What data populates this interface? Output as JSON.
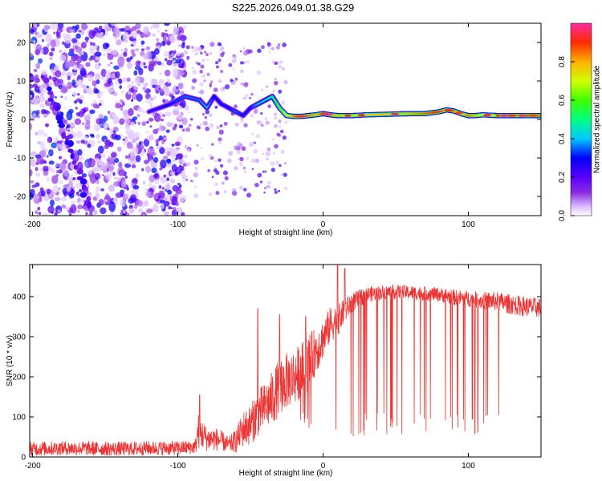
{
  "chart_data": [
    {
      "type": "heatmap",
      "title": "S225.2026.049.01.38.G29",
      "xlabel": "Height of straight line (km)",
      "ylabel": "Frequency (Hz)",
      "xlim": [
        -202,
        150
      ],
      "ylim": [
        -25,
        25
      ],
      "xticks": [
        -200,
        -100,
        0,
        100
      ],
      "xtick_labels": [
        "-200",
        "-100",
        "0",
        "100"
      ],
      "yticks": [
        -20,
        -10,
        0,
        10,
        20
      ],
      "ytick_labels": [
        "-20",
        "-10",
        "0",
        "10",
        "20"
      ],
      "colorbar": {
        "label": "Normalized spectral amplitude",
        "range": [
          0.0,
          1.0
        ],
        "ticks": [
          0.0,
          0.2,
          0.4,
          0.6,
          0.8
        ],
        "tick_labels": [
          "0.0",
          "0.2",
          "0.4",
          "0.6",
          "0.8"
        ]
      },
      "frequency_trace": {
        "x": [
          -120,
          -105,
          -95,
          -85,
          -80,
          -75,
          -70,
          -65,
          -60,
          -55,
          -50,
          -45,
          -40,
          -35,
          -30,
          -25,
          -20,
          -15,
          -10,
          -5,
          0,
          5,
          10,
          20,
          30,
          40,
          50,
          60,
          70,
          80,
          85,
          90,
          95,
          100,
          105,
          110,
          120,
          130,
          140,
          150
        ],
        "y": [
          2,
          4,
          6,
          5,
          3,
          6,
          4,
          3,
          2,
          1,
          3,
          4,
          5,
          6,
          3,
          1,
          0.8,
          0.8,
          1,
          1.2,
          1.5,
          1.2,
          1,
          1,
          1.2,
          1.3,
          1.4,
          1.5,
          1.5,
          2,
          2.5,
          2.2,
          1.5,
          1,
          1,
          1.2,
          1,
          1,
          1,
          1
        ],
        "amplitude": [
          0.25,
          0.3,
          0.35,
          0.35,
          0.4,
          0.3,
          0.3,
          0.3,
          0.35,
          0.3,
          0.3,
          0.4,
          0.45,
          0.5,
          0.6,
          0.7,
          0.85,
          0.9,
          0.85,
          0.8,
          0.85,
          0.8,
          0.8,
          0.75,
          0.75,
          0.8,
          0.75,
          0.8,
          0.85,
          0.9,
          0.8,
          0.85,
          0.75,
          0.85,
          0.8,
          0.7,
          0.75,
          0.8,
          0.9,
          0.85
        ]
      },
      "noise_band": {
        "x_range": [
          -202,
          -95
        ],
        "y_range": [
          -25,
          25
        ],
        "amplitude_range": [
          0.0,
          0.3
        ]
      },
      "diagonal_feature": {
        "x": [
          -190,
          -160
        ],
        "y": [
          10,
          -23
        ]
      }
    },
    {
      "type": "line",
      "title": "",
      "xlabel": "Height of straight line (km)",
      "ylabel": "SNR (10 * v/v)",
      "xlim": [
        -202,
        150
      ],
      "ylim": [
        0,
        480
      ],
      "xticks": [
        -200,
        -100,
        0,
        100
      ],
      "xtick_labels": [
        "-200",
        "-100",
        "0",
        "100"
      ],
      "yticks": [
        0,
        100,
        200,
        300,
        400
      ],
      "ytick_labels": [
        "0",
        "100",
        "200",
        "300",
        "400"
      ],
      "series": [
        {
          "name": "SNR",
          "color": "#ee3333",
          "x": [
            -202,
            -180,
            -160,
            -140,
            -120,
            -100,
            -88,
            -86,
            -80,
            -75,
            -70,
            -65,
            -60,
            -55,
            -50,
            -45,
            -40,
            -35,
            -30,
            -25,
            -20,
            -15,
            -10,
            -5,
            0,
            5,
            10,
            15,
            20,
            30,
            40,
            50,
            60,
            70,
            80,
            90,
            100,
            110,
            120,
            130,
            140,
            150
          ],
          "mean": [
            20,
            22,
            21,
            20,
            22,
            22,
            25,
            65,
            45,
            45,
            40,
            30,
            40,
            70,
            80,
            110,
            125,
            145,
            175,
            190,
            200,
            215,
            235,
            265,
            295,
            330,
            340,
            365,
            385,
            405,
            410,
            412,
            410,
            408,
            405,
            398,
            395,
            390,
            388,
            380,
            375,
            372
          ],
          "spread": [
            18,
            18,
            18,
            18,
            18,
            18,
            18,
            45,
            30,
            30,
            25,
            20,
            30,
            45,
            50,
            60,
            60,
            70,
            70,
            70,
            70,
            70,
            70,
            60,
            50,
            45,
            40,
            30,
            25,
            20,
            18,
            18,
            18,
            18,
            18,
            20,
            20,
            22,
            24,
            25,
            25,
            25
          ],
          "peaks": [
            [
              -85,
              155
            ],
            [
              -45,
              370
            ],
            [
              -30,
              355
            ],
            [
              -12,
              350
            ],
            [
              10,
              490
            ],
            [
              15,
              470
            ]
          ],
          "dropout_range": [
            -30,
            130
          ]
        }
      ]
    }
  ]
}
